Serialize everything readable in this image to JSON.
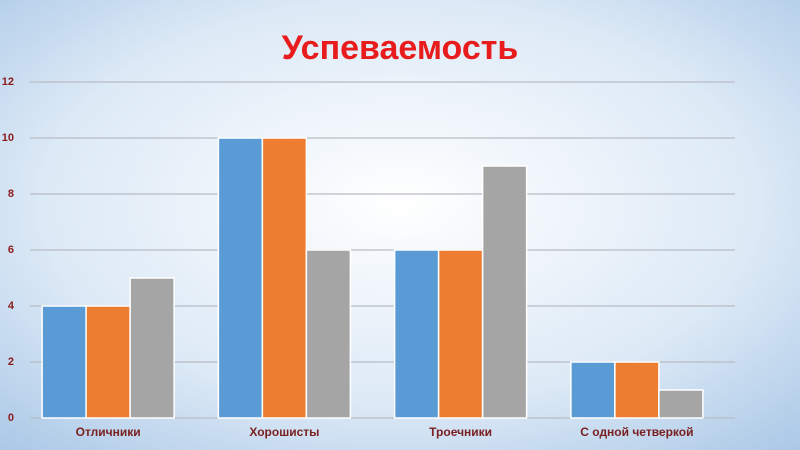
{
  "chart_data": {
    "type": "bar",
    "title": "Успеваемость",
    "categories": [
      "Отличники",
      "Хорошисты",
      "Троечники",
      "С одной четверкой"
    ],
    "series": [
      {
        "color": "#5b9bd5",
        "values": [
          4,
          10,
          6,
          2
        ]
      },
      {
        "color": "#ed7d31",
        "values": [
          4,
          10,
          6,
          2
        ]
      },
      {
        "color": "#a5a5a5",
        "values": [
          5,
          6,
          9,
          1
        ]
      }
    ],
    "ylim": [
      0,
      12
    ],
    "yticks": [
      0,
      2,
      4,
      6,
      8,
      10,
      12
    ],
    "grid": true
  }
}
